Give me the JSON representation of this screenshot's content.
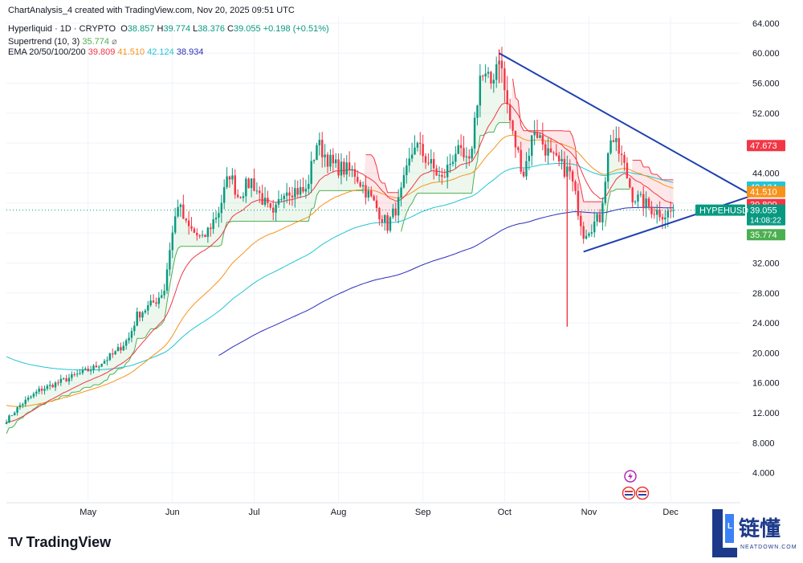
{
  "header": {
    "credit": "ChartAnalysis_4 created with TradingView.com, Nov 20, 2025 09:51 UTC",
    "symbol": "Hyperliquid · 1D · CRYPTO",
    "o_label": "O",
    "o_value": "38.857",
    "h_label": "H",
    "h_value": "39.774",
    "l_label": "L",
    "l_value": "38.376",
    "c_label": "C",
    "c_value": "39.055",
    "change": "+0.198 (+0.51%)",
    "supertrend_label": "Supertrend (10, 3)",
    "supertrend_value": "35.774",
    "ema_label": "EMA 20/50/100/200",
    "ema20": "39.809",
    "ema50": "41.510",
    "ema100": "42.124",
    "ema200": "38.934"
  },
  "colors": {
    "up": "#089981",
    "down": "#f23645",
    "ema20": "#f23645",
    "ema50": "#f7931a",
    "ema100": "#22c5d6",
    "ema200": "#2a2ebd",
    "supertrend_up": "#4caf50",
    "supertrend_down": "#f23645",
    "triangle": "#1e40af"
  },
  "branding": {
    "tradingview": "TradingView",
    "neatdown_cn": "链懂",
    "neatdown_en": "NEATDOWN.COM",
    "logo_letter": "L"
  },
  "chart_data": {
    "type": "candlestick",
    "y_ticks": [
      "64.000",
      "60.000",
      "56.000",
      "52.000",
      "48.000",
      "44.000",
      "40.000",
      "36.000",
      "32.000",
      "28.000",
      "24.000",
      "20.000",
      "16.000",
      "12.000",
      "8.000",
      "4.000"
    ],
    "y_tick_values": [
      64,
      60,
      56,
      52,
      48,
      44,
      40,
      36,
      32,
      28,
      24,
      20,
      16,
      12,
      8,
      4
    ],
    "x_ticks": [
      "May",
      "Jun",
      "Jul",
      "Aug",
      "Sep",
      "Oct",
      "Nov",
      "Dec"
    ],
    "ylim": [
      0.5,
      68
    ],
    "price_labels": [
      {
        "text": "47.673",
        "value": 47.673,
        "color": "#f23645"
      },
      {
        "text": "42.124",
        "value": 42.124,
        "color": "#22c5d6"
      },
      {
        "text": "41.510",
        "value": 41.51,
        "color": "#f7931a"
      },
      {
        "text": "39.809",
        "value": 39.809,
        "color": "#f23645"
      },
      {
        "text": "38.934",
        "value": 38.934,
        "color": "#2a2ebd"
      },
      {
        "text": "35.774",
        "value": 35.774,
        "color": "#4caf50"
      }
    ],
    "last_price": {
      "symbol": "HYPEHUSD",
      "value": 39.055,
      "text": "39.055",
      "countdown": "14:08:22"
    },
    "anchors": [
      [
        0,
        11
      ],
      [
        5,
        13
      ],
      [
        12,
        15
      ],
      [
        22,
        16.5
      ],
      [
        32,
        18
      ],
      [
        40,
        20
      ],
      [
        45,
        22
      ],
      [
        48,
        25
      ],
      [
        55,
        27
      ],
      [
        58,
        28.5
      ],
      [
        60,
        34
      ],
      [
        63,
        40
      ],
      [
        66,
        37
      ],
      [
        72,
        35
      ],
      [
        78,
        39
      ],
      [
        82,
        44
      ],
      [
        85,
        41
      ],
      [
        90,
        43
      ],
      [
        98,
        38
      ],
      [
        102,
        42
      ],
      [
        110,
        41.5
      ],
      [
        114,
        48
      ],
      [
        120,
        45
      ],
      [
        128,
        44
      ],
      [
        134,
        40.5
      ],
      [
        140,
        37
      ],
      [
        144,
        40
      ],
      [
        150,
        48
      ],
      [
        160,
        43
      ],
      [
        165,
        47
      ],
      [
        170,
        45
      ],
      [
        174,
        57
      ],
      [
        178,
        56
      ],
      [
        181,
        60
      ],
      [
        183,
        55
      ],
      [
        186,
        49
      ],
      [
        190,
        44
      ],
      [
        194,
        50
      ],
      [
        200,
        46
      ],
      [
        207,
        44
      ],
      [
        212,
        36
      ],
      [
        218,
        38
      ],
      [
        222,
        49
      ],
      [
        226,
        46
      ],
      [
        230,
        41
      ],
      [
        238,
        39
      ],
      [
        242,
        38.5
      ],
      [
        245,
        39
      ]
    ],
    "wicks": [
      [
        206,
        23.5,
        44
      ],
      [
        181,
        56,
        60.5
      ]
    ],
    "pattern": {
      "type": "symmetrical-triangle",
      "upper": [
        [
          181,
          60
        ],
        [
          274,
          41
        ]
      ],
      "lower": [
        [
          212,
          33.5
        ],
        [
          274,
          41
        ]
      ]
    },
    "x_month_days": {
      "May": 30,
      "Jun": 61,
      "Jul": 91,
      "Aug": 122,
      "Sep": 153,
      "Oct": 183,
      "Nov": 214,
      "Dec": 244
    }
  }
}
